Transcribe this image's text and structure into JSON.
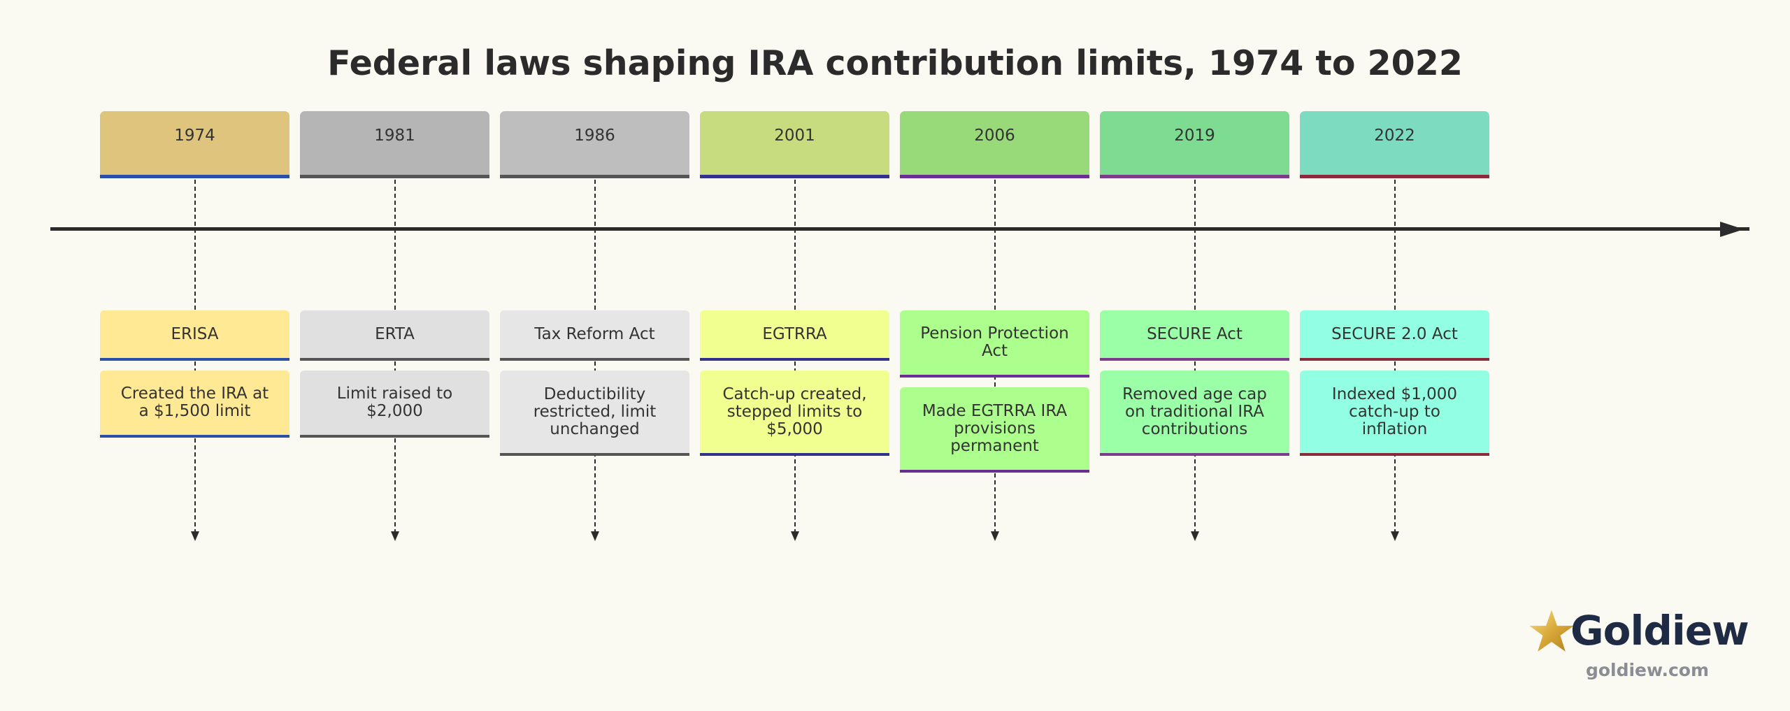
{
  "title": "Federal laws shaping IRA contribution limits, 1974 to 2022",
  "events": [
    {
      "year": "1974",
      "name": "ERISA",
      "description": "Created the IRA at a $1,500 limit",
      "year_color": "#dfc47e",
      "box_color": "#ffe994",
      "accent_color": "#2a4fa8"
    },
    {
      "year": "1981",
      "name": "ERTA",
      "description": "Limit raised to $2,000",
      "year_color": "#b5b5b5",
      "box_color": "#e0e0e0",
      "accent_color": "#555555"
    },
    {
      "year": "1986",
      "name": "Tax Reform Act",
      "description": "Deductibility restricted, limit unchanged",
      "year_color": "#bebebe",
      "box_color": "#e6e6e6",
      "accent_color": "#555555"
    },
    {
      "year": "2001",
      "name": "EGTRRA",
      "description": "Catch-up created, stepped limits to $5,000",
      "year_color": "#c7dc7e",
      "box_color": "#f0ff8f",
      "accent_color": "#32328e"
    },
    {
      "year": "2006",
      "name": "Pension Protection Act",
      "description": "Made EGTRRA IRA provisions permanent",
      "year_color": "#98da7a",
      "box_color": "#adff8d",
      "accent_color": "#6b2c93"
    },
    {
      "year": "2019",
      "name": "SECURE Act",
      "description": "Removed age cap on traditional IRA contributions",
      "year_color": "#7edc92",
      "box_color": "#9bffa8",
      "accent_color": "#7d3b8c"
    },
    {
      "year": "2022",
      "name": "SECURE 2.0 Act",
      "description": "Indexed $1,000 catch-up to inflation",
      "year_color": "#7ddcc0",
      "box_color": "#93ffe2",
      "accent_color": "#8b2a3a"
    }
  ],
  "brand": {
    "name": "Goldiew",
    "url": "goldiew.com",
    "icon": "star-icon"
  }
}
